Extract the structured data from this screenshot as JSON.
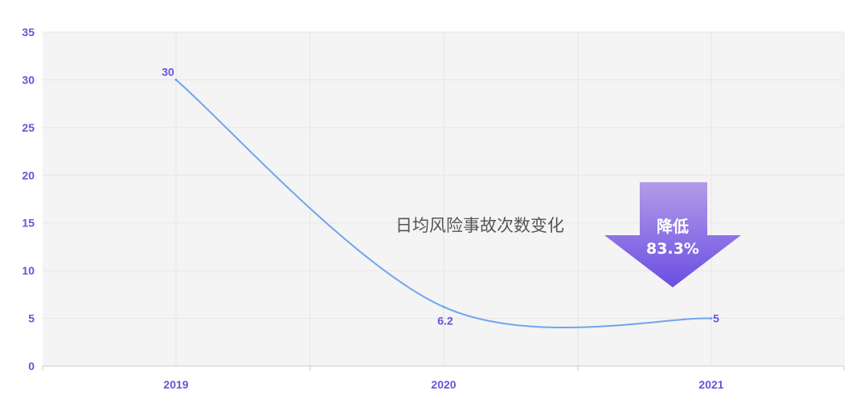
{
  "chart_data": {
    "type": "line",
    "title": "日均风险事故次数变化",
    "categories": [
      "2019",
      "2020",
      "2021"
    ],
    "series": [
      {
        "values": [
          30,
          6.2,
          5
        ]
      }
    ],
    "data_labels": [
      "30",
      "6.2",
      "5"
    ],
    "ylim": [
      0,
      35
    ],
    "yticks": [
      0,
      5,
      10,
      15,
      20,
      25,
      30,
      35
    ],
    "grid": true,
    "smooth": true,
    "annotation": {
      "line1": "降低",
      "line2": "83.3%"
    },
    "colors": {
      "line": "#6ea6ec",
      "axis_text": "#6a52d9",
      "plot_bg": "#f4f4f4",
      "grid": "#e6e6e6",
      "arrow_top": "#b39be8",
      "arrow_bottom": "#6a4ee3",
      "title": "#555555"
    }
  }
}
